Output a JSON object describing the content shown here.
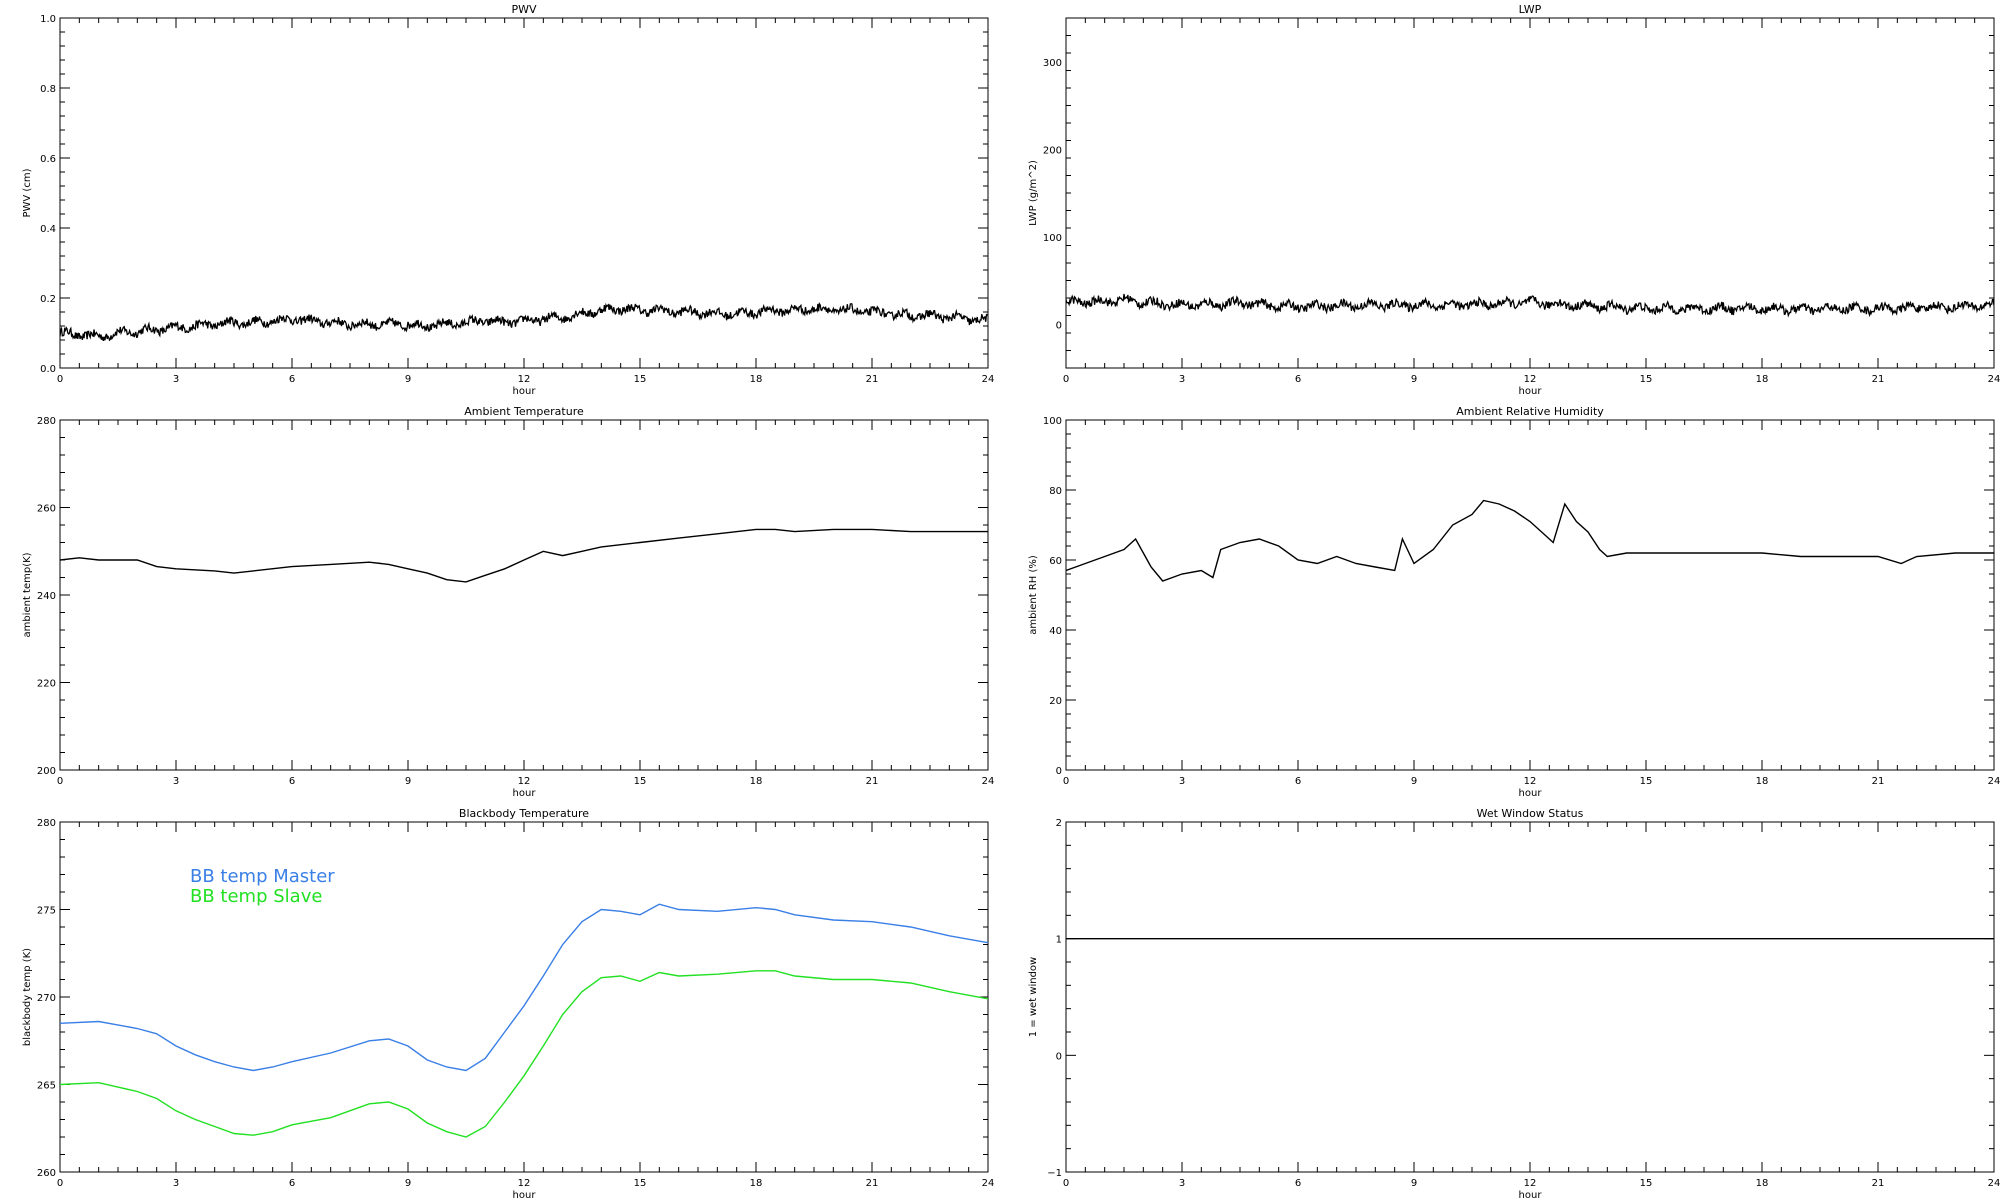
{
  "chart_data": [
    {
      "id": "pwv",
      "type": "line",
      "title": "PWV",
      "xlabel": "hour",
      "ylabel": "PWV (cm)",
      "xlim": [
        0,
        24
      ],
      "ylim": [
        0,
        1.0
      ],
      "xticks": [
        0,
        3,
        6,
        9,
        12,
        15,
        18,
        21,
        24
      ],
      "xtick_labels": [
        "0",
        "3",
        "6",
        "9",
        "12",
        "15",
        "18",
        "21",
        "24"
      ],
      "yticks": [
        0,
        0.2,
        0.4,
        0.6,
        0.8,
        1.0
      ],
      "ytick_labels": [
        "0.0",
        "0.2",
        "0.4",
        "0.6",
        "0.8",
        "1.0"
      ],
      "grid": false,
      "noisy": true,
      "series": [
        {
          "color": "#000000",
          "x": [
            0,
            0.5,
            1,
            1.5,
            2,
            2.5,
            3,
            3.5,
            4,
            4.5,
            5,
            5.5,
            6,
            6.5,
            7,
            7.5,
            8,
            8.5,
            9,
            9.5,
            10,
            10.5,
            11,
            11.5,
            12,
            12.5,
            13,
            13.5,
            14,
            14.5,
            15,
            15.5,
            16,
            16.5,
            17,
            17.5,
            18,
            18.5,
            19,
            19.5,
            20,
            20.5,
            21,
            21.5,
            22,
            22.5,
            23,
            23.5,
            24
          ],
          "y": [
            0.1,
            0.095,
            0.09,
            0.1,
            0.105,
            0.11,
            0.115,
            0.12,
            0.125,
            0.13,
            0.13,
            0.135,
            0.14,
            0.135,
            0.13,
            0.125,
            0.125,
            0.125,
            0.125,
            0.12,
            0.125,
            0.13,
            0.135,
            0.13,
            0.135,
            0.14,
            0.145,
            0.155,
            0.165,
            0.17,
            0.165,
            0.165,
            0.16,
            0.16,
            0.155,
            0.155,
            0.16,
            0.165,
            0.165,
            0.17,
            0.165,
            0.165,
            0.16,
            0.155,
            0.15,
            0.15,
            0.145,
            0.14,
            0.135
          ]
        }
      ]
    },
    {
      "id": "lwp",
      "type": "line",
      "title": "LWP",
      "xlabel": "hour",
      "ylabel": "LWP (g/m^2)",
      "xlim": [
        0,
        24
      ],
      "ylim": [
        -50,
        350
      ],
      "xticks": [
        0,
        3,
        6,
        9,
        12,
        15,
        18,
        21,
        24
      ],
      "xtick_labels": [
        "0",
        "3",
        "6",
        "9",
        "12",
        "15",
        "18",
        "21",
        "24"
      ],
      "yticks": [
        0,
        100,
        200,
        300
      ],
      "ytick_labels": [
        "0",
        "100",
        "200",
        "300"
      ],
      "grid": false,
      "noisy": true,
      "series": [
        {
          "color": "#000000",
          "x": [
            0,
            1,
            1.5,
            2,
            3,
            4,
            4.7,
            5,
            6,
            7,
            8,
            9,
            10,
            11,
            12,
            13,
            14,
            15,
            16,
            17,
            18,
            19,
            20,
            21,
            22,
            23,
            24
          ],
          "y": [
            25,
            26,
            28,
            25,
            22,
            23,
            25,
            22,
            20,
            21,
            22,
            22,
            22,
            23,
            25,
            22,
            20,
            18,
            18,
            18,
            18,
            17,
            18,
            18,
            19,
            20,
            22
          ]
        }
      ]
    },
    {
      "id": "ambient-temp",
      "type": "line",
      "title": "Ambient Temperature",
      "xlabel": "hour",
      "ylabel": "ambient temp(K)",
      "xlim": [
        0,
        24
      ],
      "ylim": [
        200,
        280
      ],
      "xticks": [
        0,
        3,
        6,
        9,
        12,
        15,
        18,
        21,
        24
      ],
      "xtick_labels": [
        "0",
        "3",
        "6",
        "9",
        "12",
        "15",
        "18",
        "21",
        "24"
      ],
      "yticks": [
        200,
        220,
        240,
        260,
        280
      ],
      "ytick_labels": [
        "200",
        "220",
        "240",
        "260",
        "280"
      ],
      "grid": false,
      "noisy": false,
      "series": [
        {
          "color": "#000000",
          "x": [
            0,
            0.5,
            1,
            2,
            2.5,
            3,
            4,
            4.5,
            5,
            6,
            7,
            8,
            8.5,
            9,
            9.5,
            10,
            10.5,
            11,
            11.5,
            12,
            12.5,
            13,
            13.5,
            14,
            15,
            16,
            17,
            18,
            18.5,
            19,
            20,
            21,
            22,
            23,
            24
          ],
          "y": [
            248,
            248.5,
            248,
            248,
            246.5,
            246,
            245.5,
            245,
            245.5,
            246.5,
            247,
            247.5,
            247,
            246,
            245,
            243.5,
            243,
            244.5,
            246,
            248,
            250,
            249,
            250,
            251,
            252,
            253,
            254,
            255,
            255,
            254.5,
            255,
            255,
            254.5,
            254.5,
            254.5
          ]
        }
      ]
    },
    {
      "id": "ambient-rh",
      "type": "line",
      "title": "Ambient Relative Humidity",
      "xlabel": "hour",
      "ylabel": "ambient RH (%)",
      "xlim": [
        0,
        24
      ],
      "ylim": [
        0,
        100
      ],
      "xticks": [
        0,
        3,
        6,
        9,
        12,
        15,
        18,
        21,
        24
      ],
      "xtick_labels": [
        "0",
        "3",
        "6",
        "9",
        "12",
        "15",
        "18",
        "21",
        "24"
      ],
      "yticks": [
        0,
        20,
        40,
        60,
        80,
        100
      ],
      "ytick_labels": [
        "0",
        "20",
        "40",
        "60",
        "80",
        "100"
      ],
      "grid": false,
      "noisy": false,
      "series": [
        {
          "color": "#000000",
          "x": [
            0,
            0.5,
            1,
            1.5,
            1.8,
            2.2,
            2.5,
            3,
            3.5,
            3.8,
            4,
            4.5,
            5,
            5.5,
            6,
            6.5,
            7,
            7.5,
            8,
            8.5,
            8.7,
            9,
            9.5,
            10,
            10.5,
            10.8,
            11.2,
            11.6,
            12,
            12.4,
            12.6,
            12.9,
            13.2,
            13.5,
            13.8,
            14,
            14.5,
            15,
            16,
            17,
            18,
            19,
            20,
            21,
            21.6,
            22,
            23,
            24
          ],
          "y": [
            57,
            59,
            61,
            63,
            66,
            58,
            54,
            56,
            57,
            55,
            63,
            65,
            66,
            64,
            60,
            59,
            61,
            59,
            58,
            57,
            66,
            59,
            63,
            70,
            73,
            77,
            76,
            74,
            71,
            67,
            65,
            76,
            71,
            68,
            63,
            61,
            62,
            62,
            62,
            62,
            62,
            61,
            61,
            61,
            59,
            61,
            62,
            62
          ]
        }
      ]
    },
    {
      "id": "blackbody-temp",
      "type": "line",
      "title": "Blackbody Temperature",
      "xlabel": "hour",
      "ylabel": "blackbody temp (K)",
      "xlim": [
        0,
        24
      ],
      "ylim": [
        260,
        280
      ],
      "xticks": [
        0,
        3,
        6,
        9,
        12,
        15,
        18,
        21,
        24
      ],
      "xtick_labels": [
        "0",
        "3",
        "6",
        "9",
        "12",
        "15",
        "18",
        "21",
        "24"
      ],
      "yticks": [
        260,
        265,
        270,
        275,
        280
      ],
      "ytick_labels": [
        "260",
        "265",
        "270",
        "275",
        "280"
      ],
      "grid": false,
      "noisy": false,
      "legend_position": "top-left",
      "series": [
        {
          "name": "BB temp Master",
          "color": "#3a7fe6",
          "x": [
            0,
            1,
            2,
            2.5,
            3,
            3.5,
            4,
            4.5,
            5,
            5.5,
            6,
            7,
            8,
            8.5,
            9,
            9.5,
            10,
            10.5,
            11,
            11.5,
            12,
            12.5,
            13,
            13.5,
            14,
            14.5,
            15,
            15.5,
            16,
            17,
            18,
            18.5,
            19,
            20,
            21,
            22,
            23,
            24
          ],
          "y": [
            268.5,
            268.6,
            268.2,
            267.9,
            267.2,
            266.7,
            266.3,
            266.0,
            265.8,
            266.0,
            266.3,
            266.8,
            267.5,
            267.6,
            267.2,
            266.4,
            266.0,
            265.8,
            266.5,
            268.0,
            269.5,
            271.2,
            273.0,
            274.3,
            275.0,
            274.9,
            274.7,
            275.3,
            275.0,
            274.9,
            275.1,
            275.0,
            274.7,
            274.4,
            274.3,
            274.0,
            273.5,
            273.1
          ]
        },
        {
          "name": "BB temp Slave",
          "color": "#22e022",
          "x": [
            0,
            1,
            2,
            2.5,
            3,
            3.5,
            4,
            4.5,
            5,
            5.5,
            6,
            7,
            8,
            8.5,
            9,
            9.5,
            10,
            10.5,
            11,
            11.5,
            12,
            12.5,
            13,
            13.5,
            14,
            14.5,
            15,
            15.5,
            16,
            17,
            18,
            18.5,
            19,
            20,
            21,
            22,
            23,
            24
          ],
          "y": [
            265.0,
            265.1,
            264.6,
            264.2,
            263.5,
            263.0,
            262.6,
            262.2,
            262.1,
            262.3,
            262.7,
            263.1,
            263.9,
            264.0,
            263.6,
            262.8,
            262.3,
            262.0,
            262.6,
            264.0,
            265.5,
            267.2,
            269.0,
            270.3,
            271.1,
            271.2,
            270.9,
            271.4,
            271.2,
            271.3,
            271.5,
            271.5,
            271.2,
            271.0,
            271.0,
            270.8,
            270.3,
            269.9
          ]
        }
      ]
    },
    {
      "id": "wet-window",
      "type": "line",
      "title": "Wet Window Status",
      "xlabel": "hour",
      "ylabel": "1 = wet window",
      "xlim": [
        0,
        24
      ],
      "ylim": [
        -1,
        2
      ],
      "xticks": [
        0,
        3,
        6,
        9,
        12,
        15,
        18,
        21,
        24
      ],
      "xtick_labels": [
        "0",
        "3",
        "6",
        "9",
        "12",
        "15",
        "18",
        "21",
        "24"
      ],
      "yticks": [
        -1,
        0,
        1,
        2
      ],
      "ytick_labels": [
        "−1",
        "0",
        "1",
        "2"
      ],
      "grid": false,
      "noisy": false,
      "series": [
        {
          "color": "#000000",
          "x": [
            0,
            24
          ],
          "y": [
            1,
            1
          ]
        }
      ]
    }
  ]
}
